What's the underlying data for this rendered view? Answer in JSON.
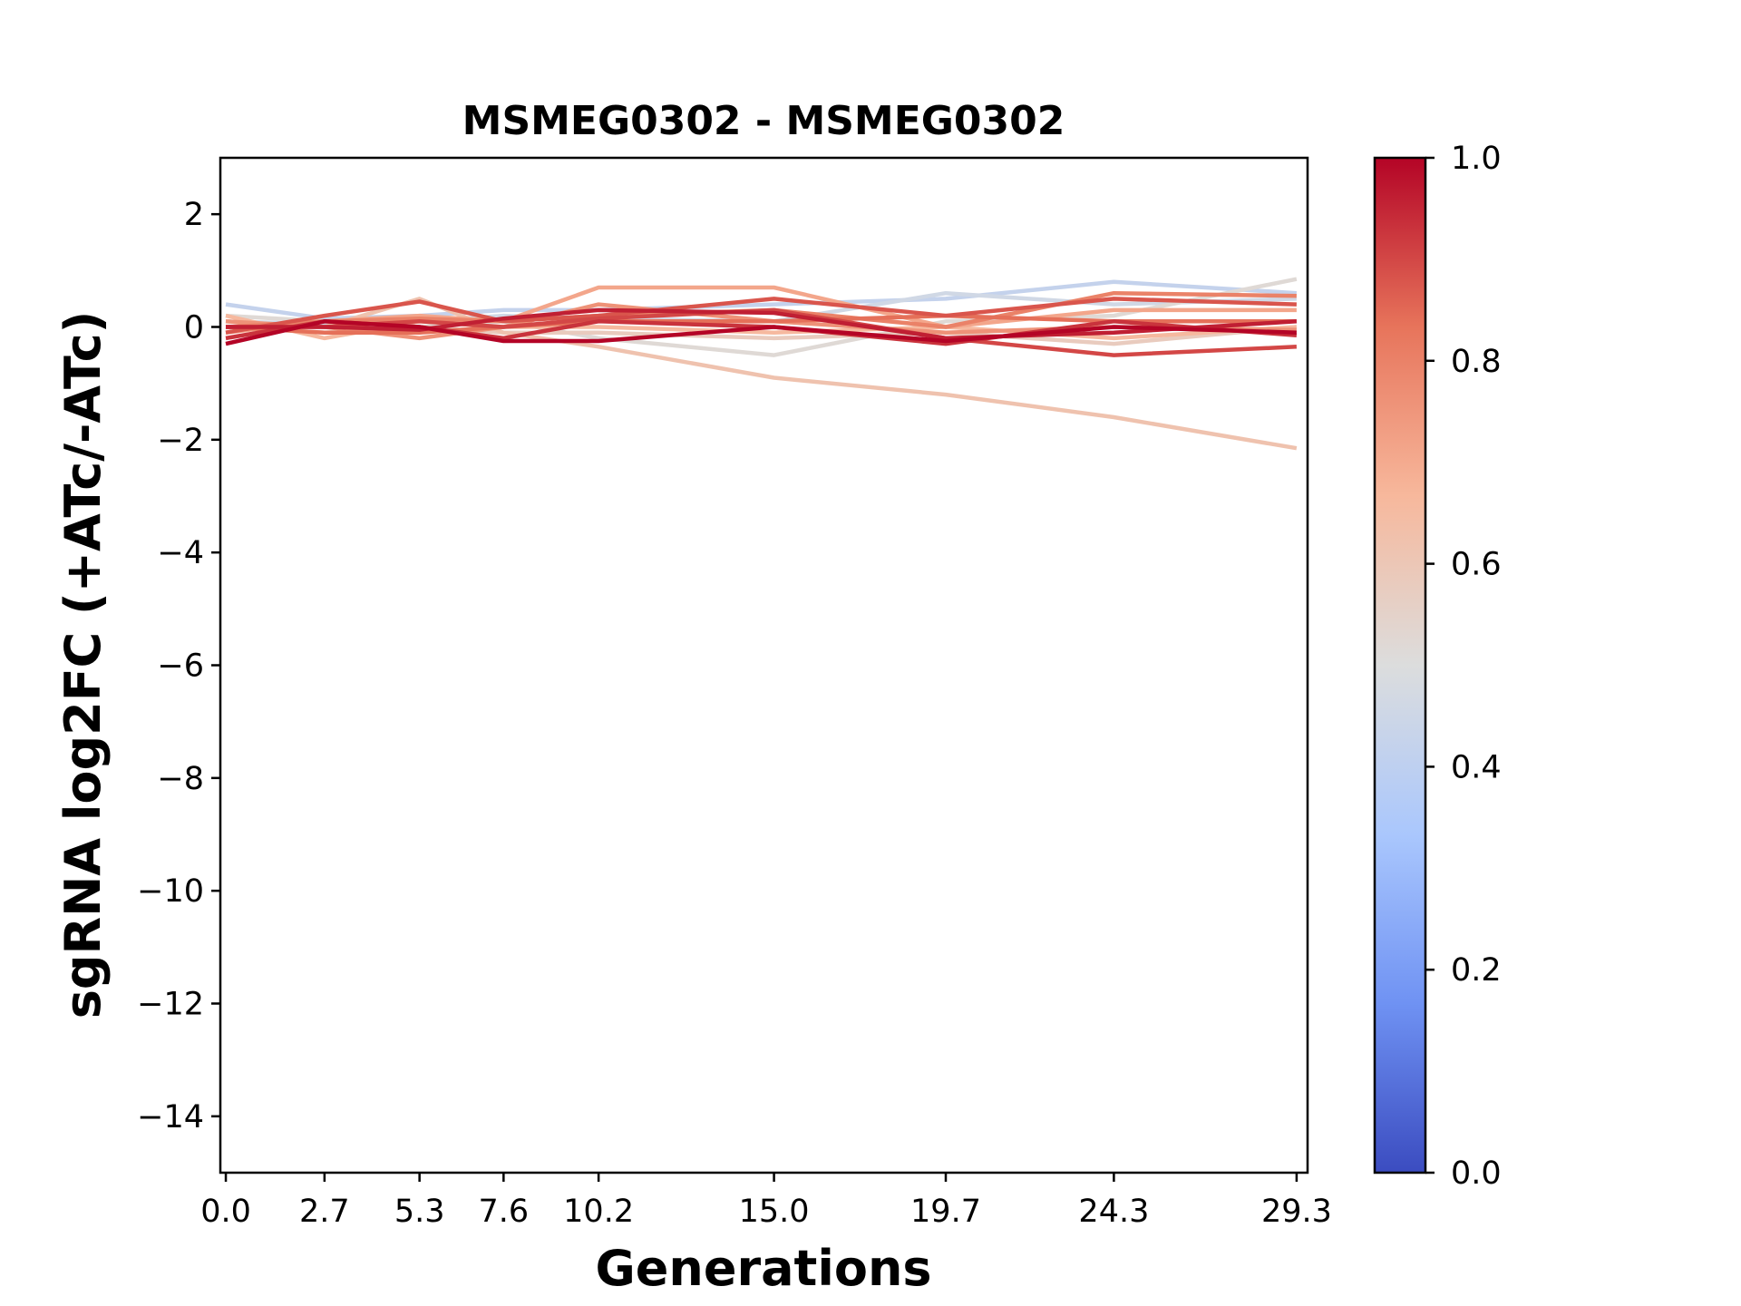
{
  "chart_data": {
    "type": "line",
    "title": "MSMEG0302 - MSMEG0302",
    "xlabel": "Generations",
    "ylabel": "sgRNA log2FC (+ATc/-ATc)",
    "x": [
      0.0,
      2.7,
      5.3,
      7.6,
      10.2,
      15.0,
      19.7,
      24.3,
      29.3
    ],
    "x_tick_labels": [
      "0.0",
      "2.7",
      "5.3",
      "7.6",
      "10.2",
      "15.0",
      "19.7",
      "24.3",
      "29.3"
    ],
    "ylim": [
      -15,
      3
    ],
    "y_ticks": [
      2,
      0,
      -2,
      -4,
      -6,
      -8,
      -10,
      -12,
      -14
    ],
    "y_tick_labels": [
      "2",
      "0",
      "−2",
      "−4",
      "−6",
      "−8",
      "−10",
      "−12",
      "−14"
    ],
    "grid": false,
    "colorbar": {
      "colormap": "coolwarm",
      "range": [
        0.0,
        1.0
      ],
      "tick_values": [
        0.0,
        0.2,
        0.4,
        0.6,
        0.8,
        1.0
      ],
      "tick_labels": [
        "0.0",
        "0.2",
        "0.4",
        "0.6",
        "0.8",
        "1.0"
      ],
      "stops": [
        "#3b4cc0",
        "#6f92f3",
        "#aac7fd",
        "#dcdddd",
        "#f7b89c",
        "#e7745b",
        "#b40426"
      ]
    },
    "series": [
      {
        "score": 0.42,
        "values": [
          0.4,
          0.15,
          0.2,
          0.3,
          0.3,
          0.4,
          0.5,
          0.8,
          0.6
        ]
      },
      {
        "score": 0.46,
        "values": [
          0.1,
          0.05,
          0.1,
          0.2,
          0.15,
          0.1,
          0.6,
          0.4,
          0.5
        ]
      },
      {
        "score": 0.52,
        "values": [
          0.2,
          0.1,
          0.0,
          0.1,
          -0.2,
          -0.5,
          0.1,
          0.2,
          0.85
        ]
      },
      {
        "score": 0.58,
        "values": [
          0.0,
          -0.1,
          0.0,
          -0.1,
          -0.1,
          -0.2,
          -0.1,
          -0.3,
          0.0
        ]
      },
      {
        "score": 0.62,
        "values": [
          0.1,
          0.0,
          0.5,
          -0.1,
          -0.35,
          -0.9,
          -1.2,
          -1.6,
          -2.15
        ]
      },
      {
        "score": 0.66,
        "values": [
          0.2,
          -0.2,
          0.1,
          0.0,
          0.0,
          -0.1,
          0.0,
          -0.2,
          0.0
        ]
      },
      {
        "score": 0.71,
        "values": [
          -0.1,
          0.1,
          0.2,
          0.1,
          0.7,
          0.7,
          0.0,
          0.3,
          0.3
        ]
      },
      {
        "score": 0.76,
        "values": [
          0.1,
          0.0,
          -0.2,
          0.0,
          0.4,
          0.1,
          -0.1,
          0.0,
          -0.05
        ]
      },
      {
        "score": 0.8,
        "values": [
          0.0,
          0.1,
          0.15,
          0.1,
          0.2,
          0.3,
          0.0,
          0.6,
          0.55
        ]
      },
      {
        "score": 0.84,
        "values": [
          0.0,
          -0.1,
          -0.1,
          0.0,
          0.1,
          0.1,
          0.2,
          0.1,
          0.1
        ]
      },
      {
        "score": 0.88,
        "values": [
          -0.1,
          0.2,
          0.45,
          0.1,
          0.2,
          0.5,
          0.2,
          0.5,
          0.4
        ]
      },
      {
        "score": 0.9,
        "values": [
          0.0,
          0.0,
          0.1,
          0.0,
          0.15,
          0.3,
          -0.2,
          -0.5,
          -0.35
        ]
      },
      {
        "score": 0.93,
        "values": [
          -0.2,
          0.1,
          0.0,
          -0.2,
          0.1,
          0.0,
          -0.3,
          0.1,
          -0.15
        ]
      },
      {
        "score": 0.96,
        "values": [
          0.0,
          0.0,
          -0.05,
          0.15,
          0.3,
          0.25,
          -0.2,
          -0.1,
          0.1
        ]
      },
      {
        "score": 1.0,
        "values": [
          -0.3,
          0.1,
          0.0,
          -0.25,
          -0.25,
          0.0,
          -0.25,
          0.0,
          -0.1
        ]
      }
    ]
  }
}
